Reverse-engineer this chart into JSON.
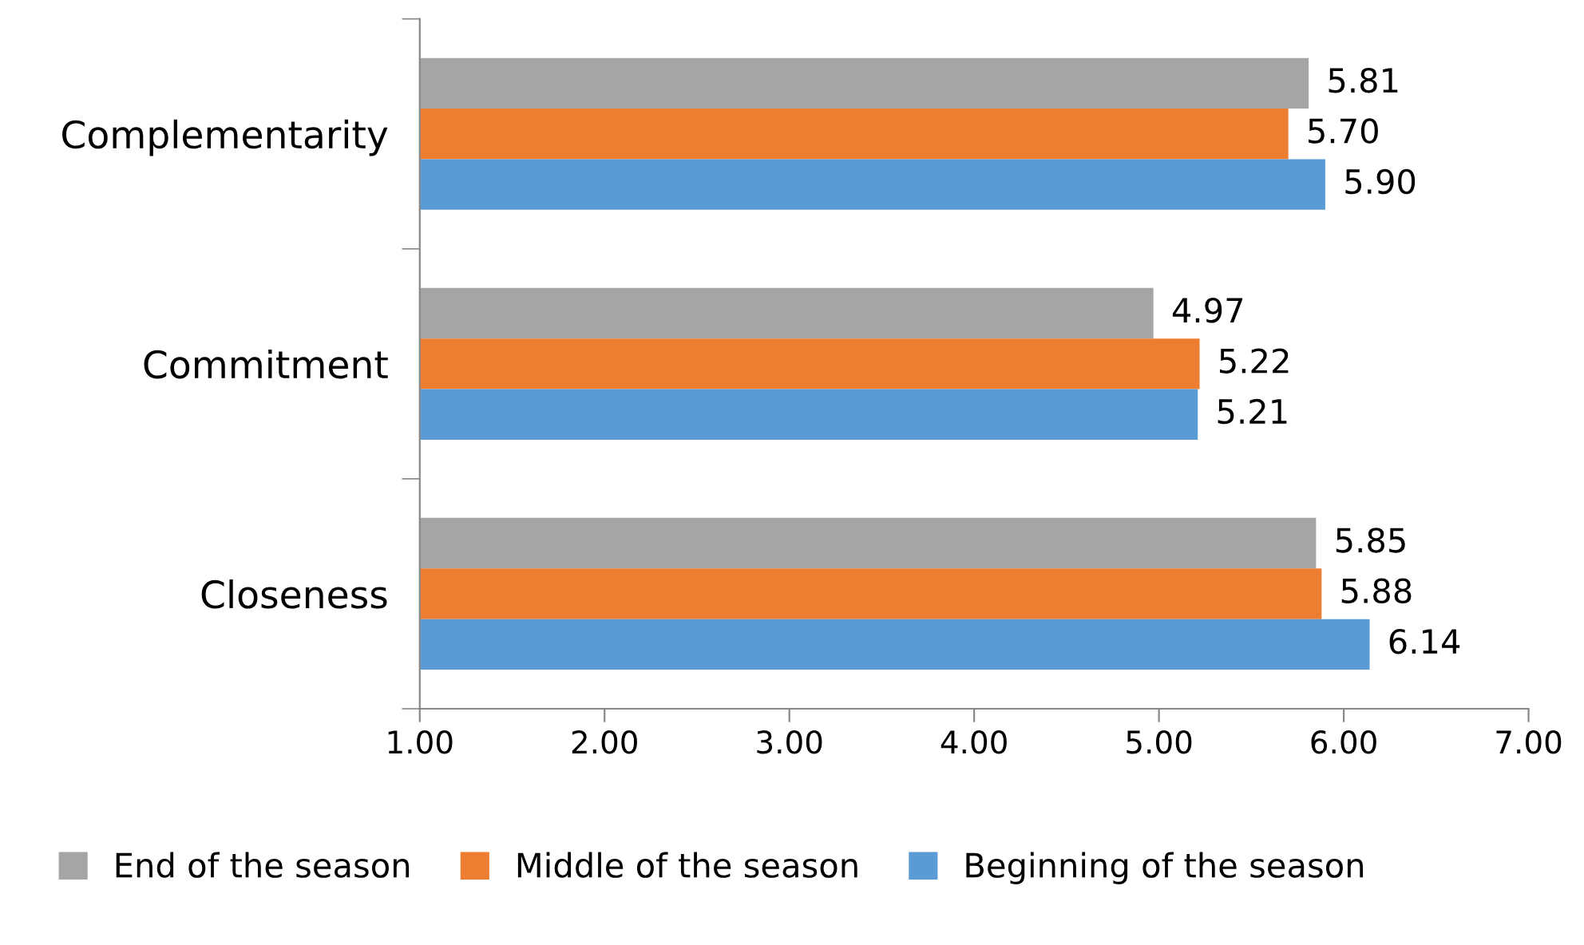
{
  "chart_data": {
    "type": "bar",
    "orientation": "horizontal",
    "categories": [
      "Complementarity",
      "Commitment",
      "Closeness"
    ],
    "series": [
      {
        "name": "End of the season",
        "color": "#a5a5a5",
        "values": [
          5.81,
          4.97,
          5.85
        ],
        "value_labels": [
          "5.81",
          "4.97",
          "5.85"
        ]
      },
      {
        "name": "Middle of the season",
        "color": "#ed7d31",
        "values": [
          5.7,
          5.22,
          5.88
        ],
        "value_labels": [
          "5.70",
          "5.22",
          "5.88"
        ]
      },
      {
        "name": "Beginning of the season",
        "color": "#5b9bd5",
        "values": [
          5.9,
          5.21,
          6.14
        ],
        "value_labels": [
          "5.90",
          "5.21",
          "6.14"
        ]
      }
    ],
    "xlim": [
      1,
      7
    ],
    "xticks": [
      {
        "value": 1,
        "label": "1.00"
      },
      {
        "value": 2,
        "label": "2.00"
      },
      {
        "value": 3,
        "label": "3.00"
      },
      {
        "value": 4,
        "label": "4.00"
      },
      {
        "value": 5,
        "label": "5.00"
      },
      {
        "value": 6,
        "label": "6.00"
      },
      {
        "value": 7,
        "label": "7.00"
      }
    ],
    "legend": "bottom",
    "grid": false
  }
}
